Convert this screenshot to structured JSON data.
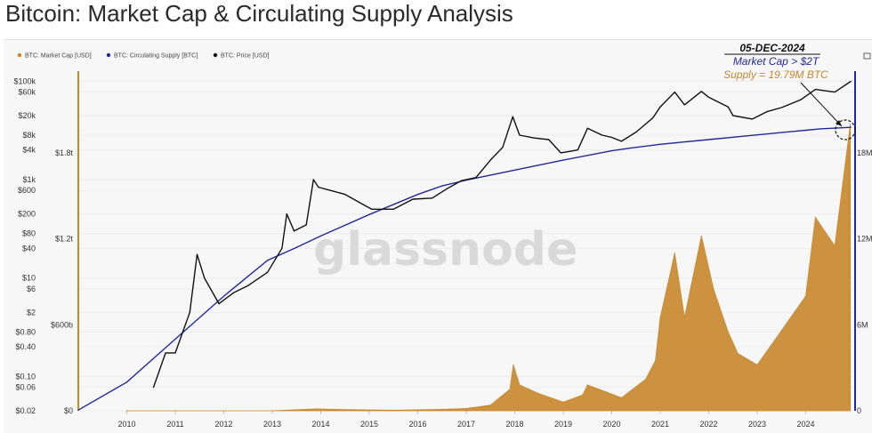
{
  "page": {
    "title": "Bitcoin: Market Cap & Circulating Supply Analysis"
  },
  "watermark": "glassnode",
  "colors": {
    "market_cap": "#c8862a",
    "supply": "#1f2a9c",
    "price": "#111111"
  },
  "legend": [
    {
      "label": "BTC: Market Cap [USD]",
      "color": "#c8862a"
    },
    {
      "label": "BTC: Circulating Supply [BTC]",
      "color": "#1f2a9c"
    },
    {
      "label": "BTC: Price [USD]",
      "color": "#111111"
    }
  ],
  "annotation": {
    "date": "05-DEC-2024",
    "line1": "Market Cap > $2T",
    "line2": "Supply = 19.79M BTC"
  },
  "chart_data": {
    "type": "line",
    "title": "Bitcoin: Market Cap & Circulating Supply Analysis",
    "x_ticks": [
      "2010",
      "2011",
      "2012",
      "2013",
      "2014",
      "2015",
      "2016",
      "2017",
      "2018",
      "2019",
      "2020",
      "2021",
      "2022",
      "2023",
      "2024"
    ],
    "price_axis_ticks": [
      "$100k",
      "$60k",
      "$20k",
      "$8k",
      "$4k",
      "$1k",
      "$600",
      "$200",
      "$80",
      "$40",
      "$10",
      "$6",
      "$2",
      "$0.80",
      "$0.40",
      "$0.10",
      "$0.06",
      "$0.02"
    ],
    "market_cap_axis_ticks": [
      "$1.8t",
      "$1.2t",
      "$600b",
      "$0"
    ],
    "supply_axis_ticks": [
      "18M",
      "12M",
      "6M",
      "0"
    ],
    "price_scale": "log",
    "grid": true,
    "legend_position": "top-left",
    "series": [
      {
        "name": "BTC: Price [USD]",
        "axis": "price",
        "x": [
          2010.55,
          2010.8,
          2011.0,
          2011.3,
          2011.45,
          2011.6,
          2011.9,
          2012.2,
          2012.5,
          2012.9,
          2013.2,
          2013.3,
          2013.45,
          2013.7,
          2013.85,
          2013.95,
          2014.2,
          2014.5,
          2014.9,
          2015.05,
          2015.5,
          2015.9,
          2016.3,
          2016.6,
          2016.9,
          2017.2,
          2017.5,
          2017.75,
          2017.96,
          2018.1,
          2018.4,
          2018.7,
          2018.95,
          2019.3,
          2019.5,
          2019.8,
          2020.0,
          2020.2,
          2020.5,
          2020.85,
          2021.0,
          2021.3,
          2021.5,
          2021.85,
          2022.0,
          2022.4,
          2022.5,
          2022.9,
          2023.2,
          2023.5,
          2023.9,
          2024.2,
          2024.6,
          2024.93
        ],
        "y": [
          0.06,
          0.3,
          0.3,
          2,
          30,
          10,
          3,
          5,
          7,
          13,
          40,
          200,
          90,
          120,
          1000,
          700,
          600,
          500,
          300,
          250,
          250,
          400,
          420,
          650,
          950,
          1100,
          2500,
          4500,
          19000,
          8000,
          7000,
          6500,
          3500,
          4000,
          11000,
          8000,
          7200,
          6000,
          9200,
          18000,
          30000,
          60000,
          33000,
          62000,
          47000,
          30000,
          20000,
          17000,
          24000,
          29000,
          42000,
          68000,
          60000,
          99000
        ]
      },
      {
        "name": "BTC: Circulating Supply [BTC]",
        "axis": "supply",
        "x": [
          2009.0,
          2010.0,
          2011.0,
          2012.0,
          2012.9,
          2013.5,
          2014.0,
          2015.0,
          2016.0,
          2016.5,
          2017.0,
          2018.0,
          2019.0,
          2020.0,
          2020.4,
          2021.0,
          2022.0,
          2023.0,
          2024.0,
          2024.3,
          2024.93
        ],
        "y": [
          0.05,
          2.0,
          5.0,
          8.0,
          10.5,
          11.4,
          12.2,
          13.7,
          15.1,
          15.7,
          16.1,
          16.8,
          17.5,
          18.15,
          18.35,
          18.6,
          18.93,
          19.26,
          19.58,
          19.68,
          19.79
        ]
      },
      {
        "name": "BTC: Market Cap [USD]",
        "axis": "market_cap",
        "unit": "USD billions",
        "x": [
          2010.0,
          2011.0,
          2012.0,
          2013.0,
          2013.9,
          2014.5,
          2015.5,
          2016.5,
          2017.0,
          2017.5,
          2017.9,
          2017.97,
          2018.1,
          2018.5,
          2019.0,
          2019.4,
          2019.5,
          2019.9,
          2020.2,
          2020.7,
          2020.9,
          2021.0,
          2021.3,
          2021.5,
          2021.85,
          2022.1,
          2022.4,
          2022.6,
          2023.0,
          2023.5,
          2024.0,
          2024.2,
          2024.6,
          2024.92
        ],
        "y": [
          0,
          0,
          0.02,
          0.3,
          13,
          8,
          4,
          10,
          16,
          40,
          150,
          320,
          180,
          120,
          60,
          110,
          180,
          130,
          90,
          220,
          350,
          650,
          1100,
          650,
          1220,
          850,
          550,
          400,
          320,
          560,
          800,
          1350,
          1150,
          2000
        ]
      }
    ],
    "annotations": [
      {
        "date": "05-DEC-2024",
        "text": "Market Cap > $2T"
      },
      {
        "date": "05-DEC-2024",
        "text": "Supply = 19.79M BTC"
      }
    ]
  }
}
